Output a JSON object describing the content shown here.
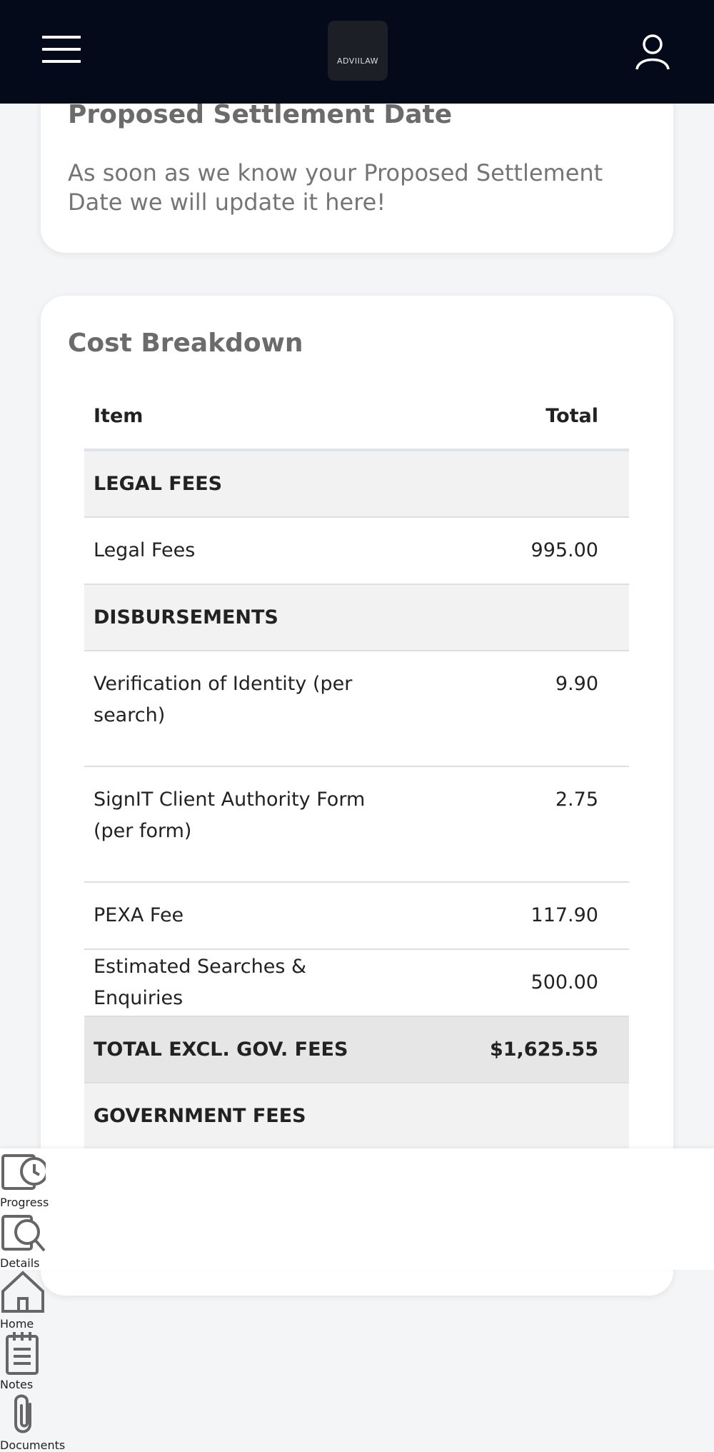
{
  "header": {
    "logo": "ADVIILAW"
  },
  "settlement": {
    "title": "Proposed Settlement Date",
    "text": "As soon as we know your Proposed Settlement Date we will update it here!"
  },
  "cost": {
    "title": "Cost Breakdown",
    "table": {
      "columns": [
        "Item",
        "Total"
      ],
      "groups": [
        {
          "heading": "LEGAL FEES",
          "rows": [
            [
              "Legal Fees",
              "995.00"
            ]
          ]
        },
        {
          "heading": "DISBURSEMENTS",
          "rows": [
            [
              "Verification of Identity (per search)",
              "9.90"
            ],
            [
              "SignIT Client Authority Form (per form)",
              "2.75"
            ],
            [
              "PEXA Fee",
              "117.90"
            ],
            [
              "Estimated Searches & Enquiries",
              "500.00"
            ]
          ]
        }
      ],
      "subtotal": [
        "TOTAL EXCL. GOV. FEES",
        "$1,625.55"
      ],
      "after": {
        "heading": "GOVERNMENT FEES"
      }
    }
  },
  "nav": [
    "Progress",
    "Details",
    "Home",
    "Notes",
    "Documents"
  ]
}
